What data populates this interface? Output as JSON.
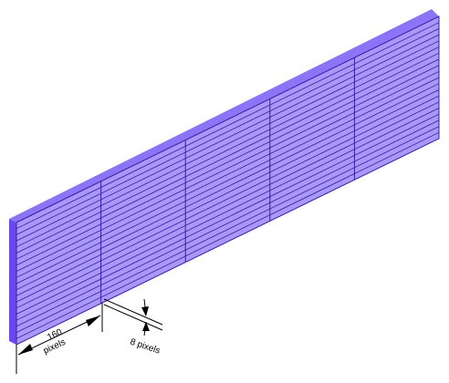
{
  "diagram": {
    "panel_count": 5,
    "stripes_per_panel": 20,
    "colors": {
      "face": "#a898f8",
      "top": "#8c74f6",
      "left_edge": "#6a48f0",
      "lines": "#3a1aa8",
      "dimension": "#000000"
    },
    "dimensions": {
      "width_value": "160",
      "width_unit": "pixels",
      "height_label": "8 pixels"
    }
  }
}
